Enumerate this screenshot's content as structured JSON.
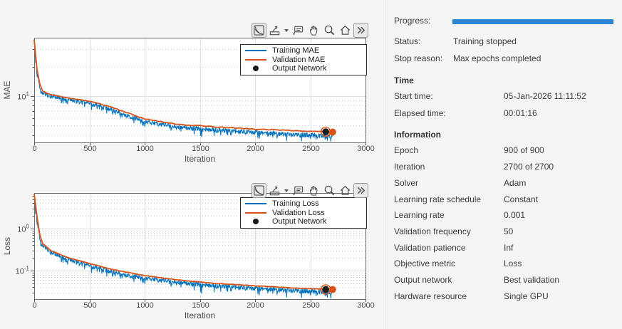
{
  "right_panel": {
    "progress_label": "Progress:",
    "status_label": "Status:",
    "status_value": "Training stopped",
    "stop_reason_label": "Stop reason:",
    "stop_reason_value": "Max epochs completed",
    "progress_color": "#2d86d5",
    "time_header": "Time",
    "time_rows": [
      {
        "label": "Start time:",
        "value": "05-Jan-2026 11:11:52"
      },
      {
        "label": "Elapsed time:",
        "value": "00:01:16"
      }
    ],
    "info_header": "Information",
    "info_rows": [
      {
        "label": "Epoch",
        "value": "900 of 900"
      },
      {
        "label": "Iteration",
        "value": "2700 of 2700"
      },
      {
        "label": "Solver",
        "value": "Adam"
      },
      {
        "label": "Learning rate schedule",
        "value": "Constant"
      },
      {
        "label": "Learning rate",
        "value": "0.001"
      },
      {
        "label": "Validation frequency",
        "value": "50"
      },
      {
        "label": "Validation patience",
        "value": "Inf"
      },
      {
        "label": "Objective metric",
        "value": "Loss"
      },
      {
        "label": "Output network",
        "value": "Best validation"
      },
      {
        "label": "Hardware resource",
        "value": "Single GPU"
      }
    ]
  },
  "toolbar": {
    "icons": [
      "log-scale-toggle-icon",
      "export-icon",
      "datatip-icon",
      "pan-icon",
      "zoom-icon",
      "home-icon",
      "double-chevron-icon"
    ]
  },
  "chart_data": [
    {
      "type": "line",
      "title": "",
      "xlabel": "Iteration",
      "ylabel": "MAE",
      "yscale": "log",
      "xlim": [
        0,
        3000
      ],
      "xticks": [
        0,
        500,
        1000,
        1500,
        2000,
        2500,
        3000
      ],
      "ylim": [
        3.37,
        39.5
      ],
      "yticks": [
        {
          "value": 10,
          "base": "10",
          "exp": "1"
        }
      ],
      "yminor": [
        4,
        5,
        6,
        7,
        8,
        9,
        20,
        30
      ],
      "grid": true,
      "legend_position": "northeast",
      "legend": [
        {
          "label": "Training MAE",
          "color": "#0072BD",
          "type": "line"
        },
        {
          "label": "Validation MAE",
          "color": "#D95319",
          "type": "line"
        },
        {
          "label": "Output Network",
          "color": "#1a1a1a",
          "type": "marker"
        }
      ],
      "series": [
        {
          "name": "Training MAE",
          "color": "#0072BD",
          "width": 1,
          "noise": 0.055,
          "step": 3,
          "points": [
            [
              0,
              37
            ],
            [
              25,
              17
            ],
            [
              60,
              11.2
            ],
            [
              120,
              10.2
            ],
            [
              300,
              9.25
            ],
            [
              520,
              8.4
            ],
            [
              700,
              7.3
            ],
            [
              1000,
              5.5
            ],
            [
              1300,
              4.85
            ],
            [
              1600,
              4.55
            ],
            [
              2000,
              4.25
            ],
            [
              2350,
              4.05
            ],
            [
              2700,
              3.92
            ]
          ]
        },
        {
          "name": "Validation MAE",
          "color": "#D95319",
          "width": 1.8,
          "noise": 0.01,
          "step": 25,
          "points": [
            [
              0,
              38
            ],
            [
              25,
              19
            ],
            [
              60,
              11.6
            ],
            [
              120,
              10.6
            ],
            [
              300,
              9.6
            ],
            [
              520,
              8.8
            ],
            [
              700,
              7.7
            ],
            [
              1000,
              5.85
            ],
            [
              1300,
              5.15
            ],
            [
              1600,
              4.9
            ],
            [
              2000,
              4.6
            ],
            [
              2350,
              4.45
            ],
            [
              2700,
              4.3
            ]
          ]
        }
      ],
      "output_marker": {
        "x": 2640,
        "y": 4.33
      },
      "end_marker": {
        "x": 2702,
        "y": 4.3
      }
    },
    {
      "type": "line",
      "title": "",
      "xlabel": "Iteration",
      "ylabel": "Loss",
      "yscale": "log",
      "xlim": [
        0,
        3000
      ],
      "xticks": [
        0,
        500,
        1000,
        1500,
        2000,
        2500,
        3000
      ],
      "ylim": [
        0.021,
        7.0
      ],
      "yticks": [
        {
          "value": 1,
          "base": "10",
          "exp": "0"
        },
        {
          "value": 0.1,
          "base": "10",
          "exp": "-1"
        }
      ],
      "yminor": [
        0.03,
        0.04,
        0.05,
        0.06,
        0.07,
        0.08,
        0.09,
        0.2,
        0.3,
        0.4,
        0.5,
        0.6,
        0.7,
        0.8,
        0.9,
        2,
        3,
        4,
        5,
        6
      ],
      "grid": true,
      "legend_position": "northeast",
      "legend": [
        {
          "label": "Training Loss",
          "color": "#0072BD",
          "type": "line"
        },
        {
          "label": "Validation Loss",
          "color": "#D95319",
          "type": "line"
        },
        {
          "label": "Output Network",
          "color": "#1a1a1a",
          "type": "marker"
        }
      ],
      "series": [
        {
          "name": "Training Loss",
          "color": "#0072BD",
          "width": 1,
          "noise": 0.13,
          "step": 3,
          "points": [
            [
              0,
              6.5
            ],
            [
              25,
              1.5
            ],
            [
              60,
              0.44
            ],
            [
              150,
              0.275
            ],
            [
              300,
              0.185
            ],
            [
              520,
              0.128
            ],
            [
              700,
              0.094
            ],
            [
              1000,
              0.066
            ],
            [
              1300,
              0.053
            ],
            [
              1600,
              0.0445
            ],
            [
              2000,
              0.0375
            ],
            [
              2350,
              0.0335
            ],
            [
              2700,
              0.0305
            ]
          ]
        },
        {
          "name": "Validation Loss",
          "color": "#D95319",
          "width": 1.8,
          "noise": 0.012,
          "step": 25,
          "points": [
            [
              0,
              6.7
            ],
            [
              25,
              2.0
            ],
            [
              60,
              0.48
            ],
            [
              150,
              0.3
            ],
            [
              300,
              0.205
            ],
            [
              520,
              0.143
            ],
            [
              700,
              0.107
            ],
            [
              1000,
              0.076
            ],
            [
              1300,
              0.06
            ],
            [
              1600,
              0.0505
            ],
            [
              2000,
              0.0435
            ],
            [
              2350,
              0.0385
            ],
            [
              2700,
              0.0355
            ]
          ]
        }
      ],
      "output_marker": {
        "x": 2640,
        "y": 0.0357
      },
      "end_marker": {
        "x": 2702,
        "y": 0.0355
      }
    }
  ]
}
